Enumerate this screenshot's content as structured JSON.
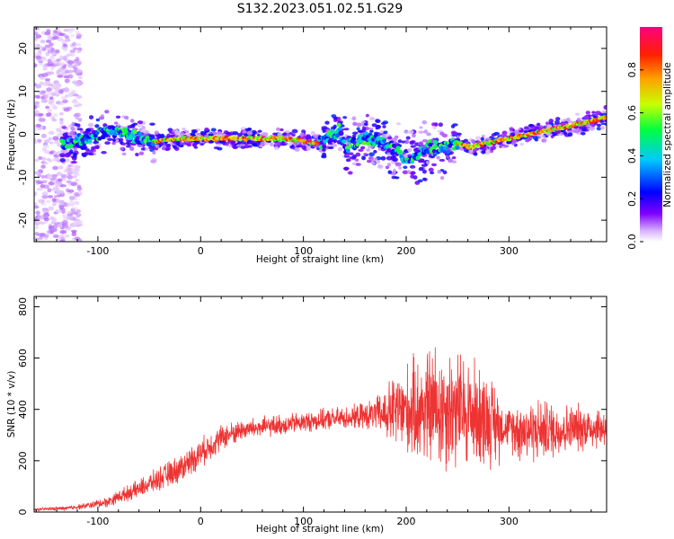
{
  "title": "S132.2023.051.02.51.G29",
  "chart_data": [
    {
      "type": "heatmap",
      "name": "spectrogram",
      "xlabel": "Height of straight line (km)",
      "ylabel": "Frequency (Hz)",
      "xlim": [
        -162,
        395
      ],
      "ylim": [
        -25,
        25
      ],
      "xticks": [
        -100,
        0,
        100,
        200,
        300
      ],
      "yticks": [
        -20,
        -10,
        0,
        10,
        20
      ],
      "colorbar": {
        "label": "Normalized spectral amplitude",
        "ticks": [
          "0.0",
          "0.2",
          "0.4",
          "0.6",
          "0.8"
        ],
        "tick_values": [
          0.0,
          0.2,
          0.4,
          0.6,
          0.8
        ],
        "range": [
          0,
          1
        ],
        "colormap": [
          "#ffffff",
          "#d9b3ff",
          "#8000ff",
          "#0000ff",
          "#00c8ff",
          "#00ff40",
          "#c8ff00",
          "#ffa000",
          "#ff2000",
          "#ff0080"
        ]
      },
      "ridge": {
        "x": [
          -130,
          -110,
          -90,
          -70,
          -50,
          -40,
          -20,
          0,
          40,
          80,
          100,
          110,
          120,
          128,
          135,
          140,
          160,
          180,
          200,
          210,
          220,
          240,
          250,
          260,
          280,
          300,
          320,
          340,
          360,
          380,
          395
        ],
        "y": [
          -2,
          -1,
          1,
          0,
          -2,
          -1.5,
          -1,
          -1,
          -1,
          -1,
          -1.5,
          -2,
          -2,
          0,
          1,
          -3,
          -1,
          -2,
          -6,
          -5,
          -3,
          -3,
          -2,
          -3,
          -2,
          -1,
          0,
          1,
          2,
          3,
          4
        ]
      },
      "ridge_strong_segments": [
        [
          -45,
          95
        ],
        [
          95,
          115
        ],
        [
          250,
          300
        ],
        [
          300,
          395
        ]
      ]
    },
    {
      "type": "line",
      "name": "snr",
      "xlabel": "Height of straight line (km)",
      "ylabel": "SNR (10 * v/v)",
      "xlim": [
        -162,
        395
      ],
      "ylim": [
        0,
        840
      ],
      "xticks": [
        -100,
        0,
        100,
        200,
        300
      ],
      "yticks": [
        0,
        200,
        400,
        600,
        800
      ],
      "series_color": "#ee3333",
      "envelope": {
        "x": [
          -162,
          -130,
          -110,
          -90,
          -80,
          -60,
          -40,
          -20,
          0,
          20,
          40,
          60,
          80,
          100,
          120,
          150,
          170,
          190,
          210,
          230,
          250,
          270,
          290,
          295,
          310,
          330,
          350,
          370,
          395
        ],
        "mean": [
          10,
          15,
          25,
          40,
          60,
          90,
          130,
          170,
          230,
          290,
          320,
          330,
          340,
          350,
          360,
          370,
          380,
          390,
          400,
          410,
          400,
          380,
          340,
          330,
          320,
          320,
          320,
          330,
          330
        ],
        "amplitude": [
          5,
          8,
          12,
          20,
          25,
          35,
          45,
          55,
          55,
          50,
          40,
          40,
          40,
          40,
          40,
          45,
          60,
          150,
          200,
          250,
          230,
          200,
          150,
          60,
          120,
          120,
          100,
          90,
          80
        ]
      }
    }
  ]
}
